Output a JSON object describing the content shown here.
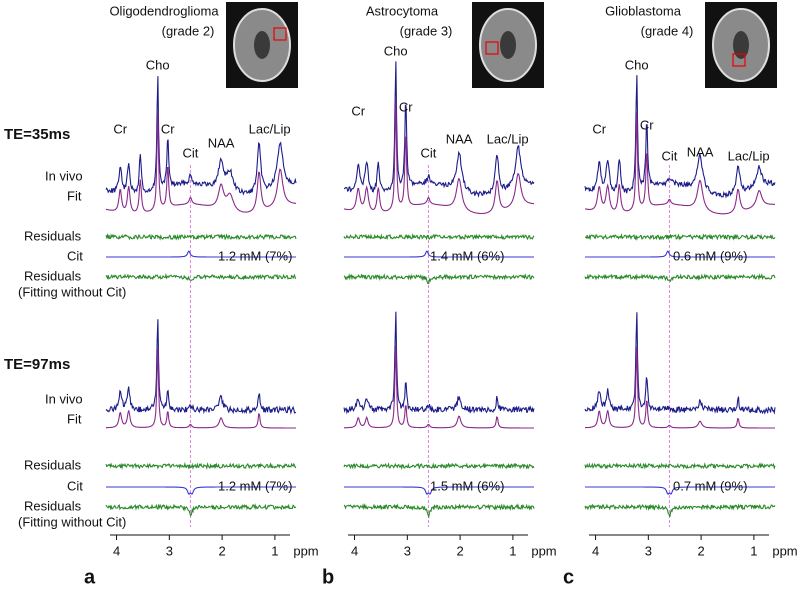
{
  "row_labels": [
    "TE=35ms",
    "TE=97ms"
  ],
  "trace_labels": {
    "in_vivo": "In vivo",
    "fit": "Fit",
    "residuals": "Residuals",
    "cit": "Cit",
    "residuals_no_cit": [
      "Residuals",
      "(Fitting without Cit)"
    ]
  },
  "axis": {
    "xlim": [
      4.2,
      0.6
    ],
    "ticks": [
      4,
      3,
      2,
      1
    ],
    "unit": "ppm"
  },
  "panels": [
    {
      "letter": "a",
      "tumor": "Oligodendroglioma",
      "grade": "(grade 2)",
      "peaks": [
        "Cr",
        "Cho",
        "Cr",
        "Cit",
        "NAA",
        "Lac/Lip"
      ],
      "cit_concentration": [
        "1.2 mM (7%)",
        "1.2 mM (7%)"
      ]
    },
    {
      "letter": "b",
      "tumor": "Astrocytoma",
      "grade": "(grade 3)",
      "peaks": [
        "Cr",
        "Cho",
        "Cr",
        "Cit",
        "NAA",
        "Lac/Lip"
      ],
      "cit_concentration": [
        "1.4 mM (6%)",
        "1.5 mM (6%)"
      ]
    },
    {
      "letter": "c",
      "tumor": "Glioblastoma",
      "grade": "(grade 4)",
      "peaks": [
        "Cr",
        "Cho",
        "Cr",
        "Cit",
        "NAA",
        "Lac/Lip"
      ],
      "cit_concentration": [
        "0.6 mM (9%)",
        "0.7 mM (9%)"
      ]
    }
  ]
}
